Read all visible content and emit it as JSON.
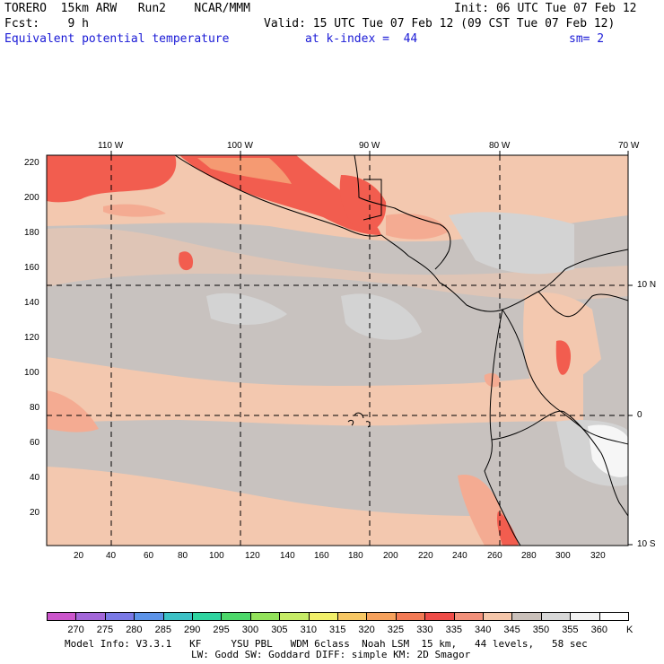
{
  "header": {
    "line1_left": "TORERO  15km ARW   Run2    NCAR/MMM",
    "line1_right": "Init: 06 UTC Tue 07 Feb 12",
    "line2_left": "Fcst:    9 h",
    "line2_right": "Valid: 15 UTC Tue 07 Feb 12 (09 CST Tue 07 Feb 12)",
    "line3_left": "Equivalent potential temperature",
    "line3_mid": "at k-index =  44",
    "line3_right": "sm= 2"
  },
  "map": {
    "top_lon_labels": [
      "110 W",
      "100 W",
      "90 W",
      "80 W",
      "70 W"
    ],
    "left_y_ticks": [
      "220",
      "200",
      "180",
      "160",
      "140",
      "120",
      "100",
      "80",
      "60",
      "40",
      "20"
    ],
    "bottom_x_ticks": [
      "20",
      "40",
      "60",
      "80",
      "100",
      "120",
      "140",
      "160",
      "180",
      "200",
      "220",
      "240",
      "260",
      "280",
      "300",
      "320"
    ],
    "right_lat_labels": [
      "10 N",
      "0",
      "10 S"
    ],
    "field_colors": {
      "low_grey": "#c8c2bf",
      "lightgrey": "#d3d3d3",
      "peach": "#f3c8af",
      "salmon": "#f4ab92",
      "orange": "#f59a72",
      "red": "#f25d4f",
      "white": "#f6f6f6"
    }
  },
  "colorbar": {
    "labels": [
      "270",
      "275",
      "280",
      "285",
      "290",
      "295",
      "300",
      "305",
      "310",
      "315",
      "320",
      "325",
      "330",
      "335",
      "340",
      "345",
      "350",
      "355",
      "360",
      "K"
    ],
    "colors": [
      "#cc55cc",
      "#a366d9",
      "#7a79e6",
      "#5c93e8",
      "#3cc1c6",
      "#2ed4a0",
      "#4cd86a",
      "#92e25a",
      "#c6ec66",
      "#f2f06a",
      "#f7c764",
      "#f6a15c",
      "#f37a55",
      "#ee4c48",
      "#f2907a",
      "#f5c6aa",
      "#cac0ba",
      "#d8d8d8",
      "#f2f2f2",
      "#ffffff"
    ]
  },
  "footer": {
    "line1": "Model Info: V3.3.1   KF     YSU PBL   WDM 6class  Noah LSM  15 km,   44 levels,   58 sec",
    "line2": "LW: Godd SW: Goddard DIFF: simple KM: 2D Smagor"
  }
}
